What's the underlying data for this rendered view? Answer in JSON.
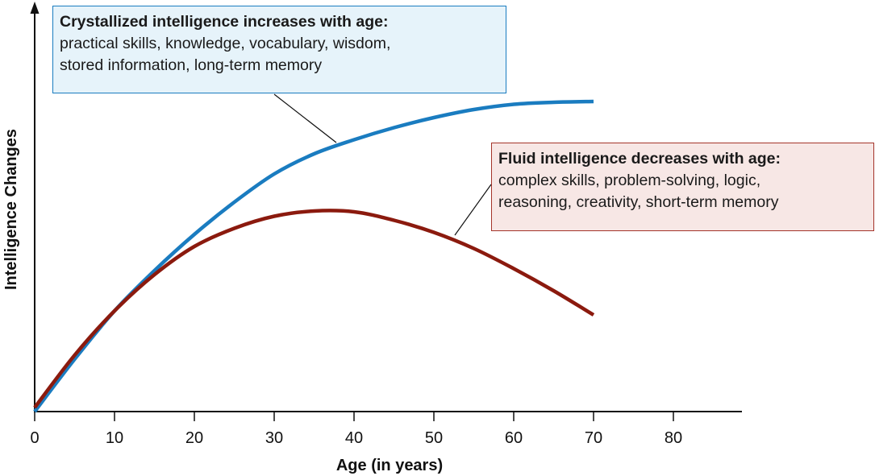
{
  "chart_data": {
    "type": "line",
    "xlabel": "Age (in years)",
    "ylabel": "Intelligence Changes",
    "xlim": [
      0,
      88
    ],
    "ylim": [
      0,
      100
    ],
    "x_ticks": [
      0,
      10,
      20,
      30,
      40,
      50,
      60,
      70,
      80
    ],
    "y_ticks": [],
    "grid": false,
    "series": [
      {
        "key": "crystallized",
        "color": "#1a7cc0",
        "x": [
          0,
          5,
          10,
          15,
          20,
          25,
          30,
          35,
          40,
          45,
          50,
          55,
          60,
          65,
          70
        ],
        "y": [
          0,
          13,
          25,
          35,
          44,
          52,
          59,
          64,
          67.5,
          70.5,
          73,
          75,
          76.3,
          76.8,
          77
        ]
      },
      {
        "key": "fluid",
        "color": "#8b1a0e",
        "x": [
          0,
          5,
          10,
          15,
          20,
          25,
          30,
          35,
          40,
          45,
          50,
          55,
          60,
          65,
          70
        ],
        "y": [
          1,
          14,
          25,
          34,
          41,
          45.5,
          48.5,
          49.8,
          49.6,
          47.5,
          44.5,
          40.5,
          35.5,
          30,
          24
        ]
      }
    ],
    "annotations": [
      {
        "target": "crystallized",
        "title": "Crystallized intelligence increases with age:",
        "lines": [
          "practical skills, knowledge, vocabulary, wisdom,",
          "stored information, long-term memory"
        ],
        "fill": "#e6f3fa",
        "border": "#1a7cc0"
      },
      {
        "target": "fluid",
        "title": "Fluid intelligence decreases with age:",
        "lines": [
          "complex skills, problem-solving, logic,",
          "reasoning, creativity, short-term memory"
        ],
        "fill": "#f7e7e5",
        "border": "#a4342a"
      }
    ]
  }
}
